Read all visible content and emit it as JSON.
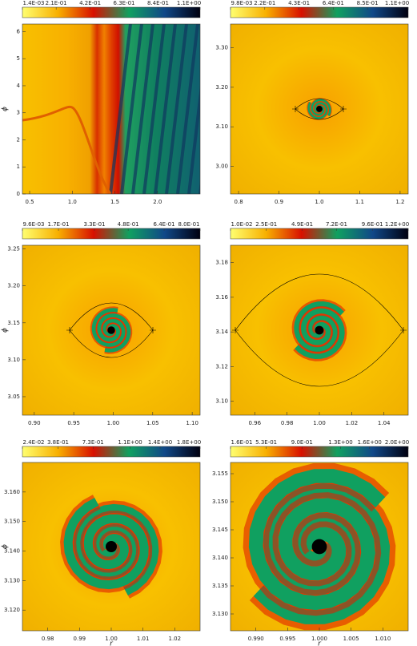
{
  "chart_data": [
    {
      "type": "heatmap",
      "ylabel": "ϕ",
      "xlim": [
        0.415,
        2.5
      ],
      "ylim": [
        0,
        6.28
      ],
      "xticks": [
        0.5,
        {
          "value": 1.0,
          "label": "1.0"
        },
        1.5,
        {
          "value": 2.0,
          "label": "2.0"
        }
      ],
      "yticks": [
        0,
        1,
        2,
        3,
        4,
        5,
        6
      ],
      "colormap": [
        "#ffff70",
        "#f8b000",
        "#d81000",
        "#10a060",
        "#104888",
        "#000010"
      ],
      "clim": [
        0.0014,
        1.1
      ],
      "cticks": [
        {
          "value": 0.0014,
          "label": "1.4E-03"
        },
        {
          "value": 0.21,
          "label": "2.1E-01"
        },
        {
          "value": 0.42,
          "label": "4.2E-01"
        },
        {
          "value": 0.63,
          "label": "6.3E-01"
        },
        {
          "value": 0.84,
          "label": "8.4E-01"
        },
        {
          "value": 1.1,
          "label": "1.1E+00"
        }
      ]
    },
    {
      "type": "heatmap",
      "xlim": [
        0.78,
        1.22
      ],
      "ylim": [
        2.93,
        3.36
      ],
      "xticks": [
        0.8,
        0.9,
        {
          "value": 1.0,
          "label": "1.0"
        },
        1.1,
        1.2
      ],
      "yticks": [
        {
          "value": 3.0,
          "label": "3.00"
        },
        {
          "value": 3.1,
          "label": "3.10"
        },
        {
          "value": 3.2,
          "label": "3.20"
        },
        {
          "value": 3.3,
          "label": "3.30"
        }
      ],
      "colormap": [
        "#ffff70",
        "#f8b000",
        "#d81000",
        "#10a060",
        "#104888",
        "#000010"
      ],
      "clim": [
        0.0098,
        1.1
      ],
      "cticks": [
        {
          "value": 0.0098,
          "label": "9.8E-03"
        },
        {
          "value": 0.22,
          "label": "2.2E-01"
        },
        {
          "value": 0.43,
          "label": "4.3E-01"
        },
        {
          "value": 0.64,
          "label": "6.4E-01"
        },
        {
          "value": 0.85,
          "label": "8.5E-01"
        },
        {
          "value": 1.1,
          "label": "1.1E+00"
        }
      ]
    },
    {
      "type": "heatmap",
      "ylabel": "ϕ",
      "xlim": [
        0.885,
        1.11
      ],
      "ylim": [
        3.025,
        3.255
      ],
      "xticks": [
        {
          "value": 0.9,
          "label": "0.90"
        },
        0.95,
        {
          "value": 1.0,
          "label": "1.00"
        },
        1.05,
        {
          "value": 1.1,
          "label": "1.10"
        }
      ],
      "yticks": [
        3.05,
        {
          "value": 3.1,
          "label": "3.10"
        },
        3.15,
        {
          "value": 3.2,
          "label": "3.20"
        },
        3.25
      ],
      "colormap": [
        "#ffff70",
        "#f8b000",
        "#d81000",
        "#10a060",
        "#104888",
        "#000010"
      ],
      "clim": [
        0.0096,
        0.8
      ],
      "cticks": [
        {
          "value": 0.0096,
          "label": "9.6E-03"
        },
        {
          "value": 0.17,
          "label": "1.7E-01"
        },
        {
          "value": 0.33,
          "label": "3.3E-01"
        },
        {
          "value": 0.48,
          "label": "4.8E-01"
        },
        {
          "value": 0.64,
          "label": "6.4E-01"
        },
        {
          "value": 0.8,
          "label": "8.0E-01"
        }
      ]
    },
    {
      "type": "heatmap",
      "xlim": [
        0.945,
        1.055
      ],
      "ylim": [
        3.092,
        3.19
      ],
      "xticks": [
        0.96,
        0.98,
        {
          "value": 1.0,
          "label": "1.00"
        },
        1.02,
        1.04
      ],
      "yticks": [
        {
          "value": 3.1,
          "label": "3.10"
        },
        3.12,
        3.14,
        3.16,
        3.18
      ],
      "colormap": [
        "#ffff70",
        "#f8b000",
        "#d81000",
        "#10a060",
        "#104888",
        "#000010"
      ],
      "clim": [
        0.01,
        1.2
      ],
      "cticks": [
        {
          "value": 0.01,
          "label": "1.0E-02"
        },
        {
          "value": 0.25,
          "label": "2.5E-01"
        },
        {
          "value": 0.49,
          "label": "4.9E-01"
        },
        {
          "value": 0.72,
          "label": "7.2E-01"
        },
        {
          "value": 0.96,
          "label": "9.6E-01"
        },
        {
          "value": 1.2,
          "label": "1.2E+00"
        }
      ]
    },
    {
      "type": "heatmap",
      "xlabel": "r",
      "ylabel": "ϕ",
      "xlim": [
        0.972,
        1.028
      ],
      "ylim": [
        3.113,
        3.17
      ],
      "xticks": [
        0.98,
        0.99,
        {
          "value": 1.0,
          "label": "1.00"
        },
        1.01,
        1.02
      ],
      "yticks": [
        {
          "value": 3.12,
          "label": "3.120"
        },
        {
          "value": 3.13,
          "label": "3.130"
        },
        {
          "value": 3.14,
          "label": "3.140"
        },
        {
          "value": 3.15,
          "label": "3.150"
        },
        {
          "value": 3.16,
          "label": "3.160"
        }
      ],
      "colormap": [
        "#ffff70",
        "#f8b000",
        "#d81000",
        "#10a060",
        "#104888",
        "#000010"
      ],
      "clim": [
        0.024,
        1.8
      ],
      "cticks": [
        {
          "value": 0.024,
          "label": "2.4E-02"
        },
        {
          "value": 0.38,
          "label": "3.8E-01"
        },
        {
          "value": 0.73,
          "label": "7.3E-01"
        },
        {
          "value": 1.1,
          "label": "1.1E+00"
        },
        {
          "value": 1.4,
          "label": "1.4E+00"
        },
        {
          "value": 1.8,
          "label": "1.8E+00"
        }
      ]
    },
    {
      "type": "heatmap",
      "xlabel": "r",
      "xlim": [
        0.986,
        1.014
      ],
      "ylim": [
        3.127,
        3.157
      ],
      "xticks": [
        {
          "value": 0.99,
          "label": "0.990"
        },
        0.995,
        {
          "value": 1.0,
          "label": "1.000"
        },
        1.005,
        {
          "value": 1.01,
          "label": "1.010"
        }
      ],
      "yticks": [
        {
          "value": 3.13,
          "label": "3.130"
        },
        3.135,
        {
          "value": 3.14,
          "label": "3.140"
        },
        3.145,
        {
          "value": 3.15,
          "label": "3.150"
        },
        3.155
      ],
      "colormap": [
        "#ffff70",
        "#f8b000",
        "#d81000",
        "#10a060",
        "#104888",
        "#000010"
      ],
      "clim": [
        0.16,
        2.0
      ],
      "cticks": [
        {
          "value": 0.16,
          "label": "1.6E-01"
        },
        {
          "value": 0.53,
          "label": "5.3E-01"
        },
        {
          "value": 0.9,
          "label": "9.0E-01"
        },
        {
          "value": 1.3,
          "label": "1.3E+00"
        },
        {
          "value": 1.6,
          "label": "1.6E+00"
        },
        {
          "value": 2.0,
          "label": "2.0E+00"
        }
      ]
    }
  ]
}
